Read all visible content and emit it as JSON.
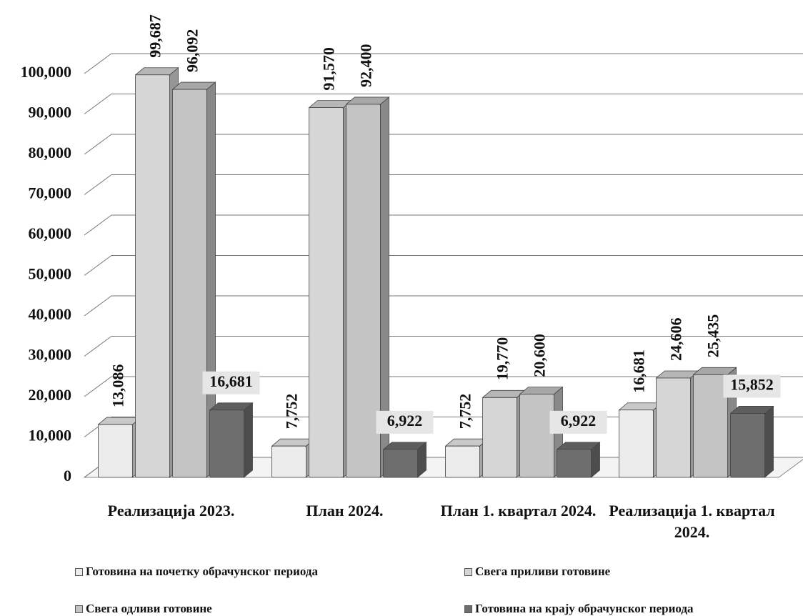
{
  "chart_data": {
    "type": "bar3d",
    "categories": [
      "Реализација 2023.",
      "План 2024.",
      "План 1. квартал 2024.",
      "Реализација 1. квартал 2024."
    ],
    "series": [
      {
        "name": "Готовина на почетку обрачунског периода",
        "color": "#ececec",
        "values": [
          13086,
          7752,
          7752,
          16681
        ],
        "value_labels": [
          "13,086",
          "7,752",
          "7,752",
          "16,681"
        ]
      },
      {
        "name": "Свега приливи готовине",
        "color": "#d6d6d6",
        "values": [
          99687,
          91570,
          19770,
          24606
        ],
        "value_labels": [
          "99,687",
          "91,570",
          "19,770",
          "24,606"
        ]
      },
      {
        "name": "Свега одливи готовине",
        "color": "#c4c4c4",
        "values": [
          96092,
          92400,
          20600,
          25435
        ],
        "value_labels": [
          "96,092",
          "92,400",
          "20,600",
          "25,435"
        ]
      },
      {
        "name": "Готовина на крају обрачунског периода",
        "color": "#6e6e6e",
        "values": [
          16681,
          6922,
          6922,
          15852
        ],
        "value_labels": [
          "16,681",
          "6,922",
          "6,922",
          "15,852"
        ]
      }
    ],
    "ylim": [
      0,
      100000
    ],
    "yticks": [
      0,
      {
        "value": 10000,
        "label": "10,000"
      },
      {
        "value": 20000,
        "label": "20,000"
      },
      {
        "value": 30000,
        "label": "30,000"
      },
      {
        "value": 40000,
        "label": "40,000"
      },
      {
        "value": 50000,
        "label": "50,000"
      },
      {
        "value": 60000,
        "label": "60,000"
      },
      {
        "value": 70000,
        "label": "70,000"
      },
      {
        "value": 80000,
        "label": "80,000"
      },
      {
        "value": 90000,
        "label": "90,000"
      },
      {
        "value": 100000,
        "label": "100,000"
      }
    ],
    "grid": true,
    "legend": "bottom"
  }
}
